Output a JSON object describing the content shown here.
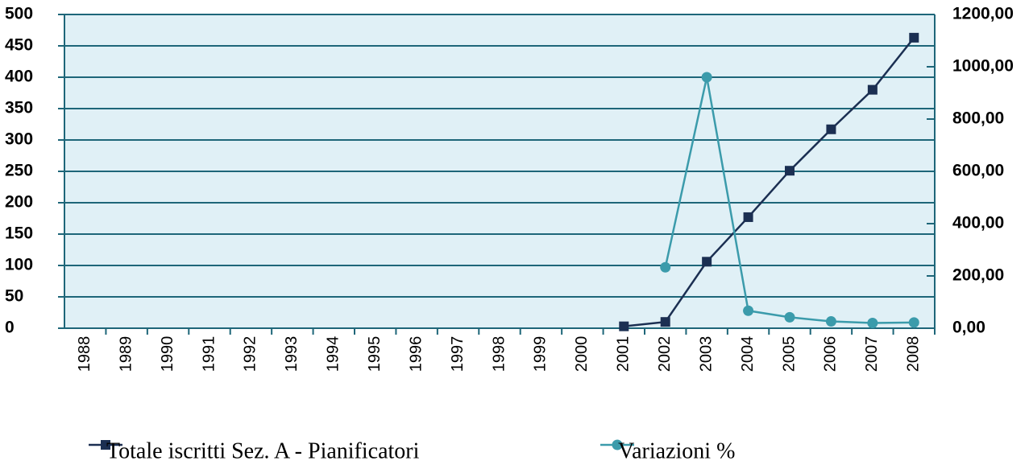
{
  "chart_data": {
    "type": "line",
    "categories": [
      "1988",
      "1989",
      "1990",
      "1991",
      "1992",
      "1993",
      "1994",
      "1995",
      "1996",
      "1997",
      "1998",
      "1999",
      "2000",
      "2001",
      "2002",
      "2003",
      "2004",
      "2005",
      "2006",
      "2007",
      "2008"
    ],
    "series": [
      {
        "name": "Totale iscritti Sez. A - Pianificatori",
        "color": "#1b2f52",
        "marker": "square",
        "values": [
          null,
          null,
          null,
          null,
          null,
          null,
          null,
          null,
          null,
          null,
          null,
          null,
          null,
          3,
          10,
          106,
          177,
          251,
          317,
          380,
          463
        ]
      },
      {
        "name": "Variazioni %",
        "color": "#3b9bab",
        "marker": "circle",
        "axis": "y2",
        "values": [
          null,
          null,
          null,
          null,
          null,
          null,
          null,
          null,
          null,
          null,
          null,
          null,
          null,
          null,
          233,
          960,
          67,
          42,
          26,
          20,
          22
        ]
      }
    ],
    "ylim": [
      0,
      500
    ],
    "yticks": [
      0,
      50,
      100,
      150,
      200,
      250,
      300,
      350,
      400,
      450,
      500
    ],
    "y2lim": [
      0,
      1200
    ],
    "y2ticks": [
      {
        "value": 0,
        "label": "0,00"
      },
      {
        "value": 200,
        "label": "200,00"
      },
      {
        "value": 400,
        "label": "400,00"
      },
      {
        "value": 600,
        "label": "600,00"
      },
      {
        "value": 800,
        "label": "800,00"
      },
      {
        "value": 1000,
        "label": "1000,00"
      },
      {
        "value": 1200,
        "label": "1200,00"
      }
    ],
    "grid": true,
    "legend": "bottom"
  }
}
